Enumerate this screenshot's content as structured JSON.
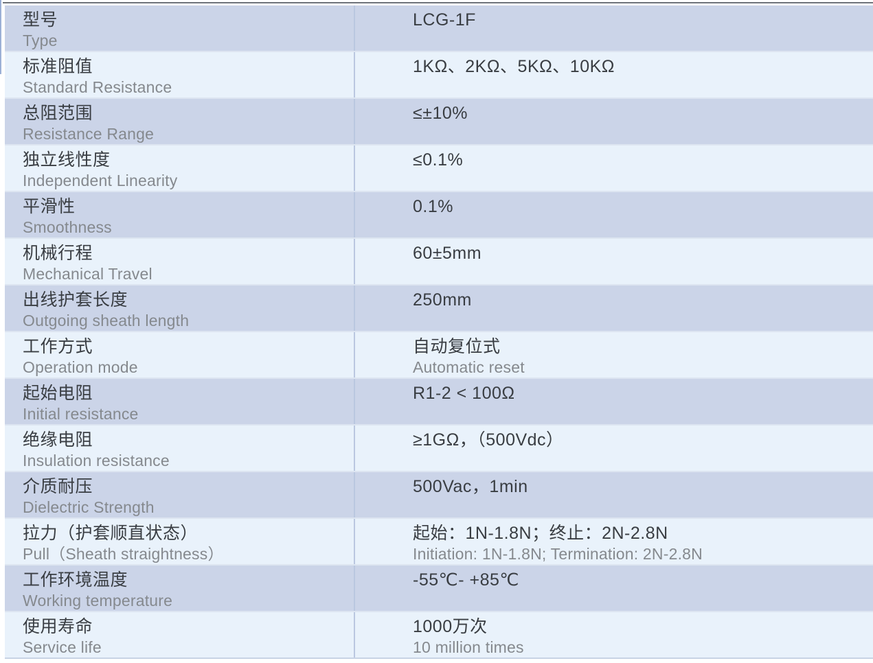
{
  "product_code": "LCG-1F",
  "colors": {
    "row_dark": "#cbd4e8",
    "row_light": "#e9f2fb",
    "row_separator": "#dde5f1",
    "column_divider": "#bac7e0",
    "top_rule": "#6e737a",
    "bottom_rule": "#c7d3e5",
    "left_stub": "#9cb0d6",
    "text_primary": "#393d42",
    "text_secondary": "#85898e"
  },
  "table": {
    "rows": [
      {
        "label_zh": "型号",
        "label_en": "Type",
        "value": "LCG-1F",
        "value_en": ""
      },
      {
        "label_zh": "标准阻值",
        "label_en": "Standard Resistance",
        "value": "1KΩ、2KΩ、5KΩ、10KΩ",
        "value_en": ""
      },
      {
        "label_zh": "总阻范围",
        "label_en": "Resistance Range",
        "value": "≤±10%",
        "value_en": ""
      },
      {
        "label_zh": "独立线性度",
        "label_en": "Independent Linearity",
        "value": "≤0.1%",
        "value_en": ""
      },
      {
        "label_zh": "平滑性",
        "label_en": "Smoothness",
        "value": "0.1%",
        "value_en": ""
      },
      {
        "label_zh": "机械行程",
        "label_en": "Mechanical Travel",
        "value": "60±5mm",
        "value_en": ""
      },
      {
        "label_zh": "出线护套长度",
        "label_en": "Outgoing sheath length",
        "value": "250mm",
        "value_en": ""
      },
      {
        "label_zh": "工作方式",
        "label_en": "Operation mode",
        "value": "自动复位式",
        "value_en": "Automatic reset"
      },
      {
        "label_zh": "起始电阻",
        "label_en": "Initial resistance",
        "value": "R1-2 < 100Ω",
        "value_en": ""
      },
      {
        "label_zh": "绝缘电阻",
        "label_en": "Insulation resistance",
        "value": "≥1GΩ，（500Vdc）",
        "value_en": ""
      },
      {
        "label_zh": "介质耐压",
        "label_en": "Dielectric Strength",
        "value": "500Vac，1min",
        "value_en": ""
      },
      {
        "label_zh": "拉力（护套顺直状态）",
        "label_en": "Pull（Sheath straightness）",
        "value": "起始：1N-1.8N；终止：2N-2.8N",
        "value_en": "Initiation: 1N-1.8N; Termination: 2N-2.8N"
      },
      {
        "label_zh": "工作环境温度",
        "label_en": "Working temperature",
        "value": "-55℃- +85℃",
        "value_en": ""
      },
      {
        "label_zh": "使用寿命",
        "label_en": "Service life",
        "value": "1000万次",
        "value_en": "10 million times"
      }
    ]
  }
}
